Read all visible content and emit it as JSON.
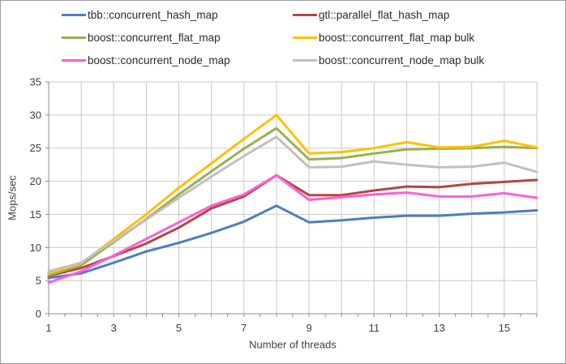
{
  "chart_data": {
    "type": "line",
    "title": "",
    "xlabel": "Number of threads",
    "ylabel": "Mops/sec",
    "x": [
      1,
      2,
      3,
      4,
      5,
      6,
      7,
      8,
      9,
      10,
      11,
      12,
      13,
      14,
      15,
      16
    ],
    "series": [
      {
        "name": "tbb::concurrent_hash_map",
        "color": "#4E7EBE",
        "values": [
          5.4,
          6.1,
          7.7,
          9.4,
          10.7,
          12.2,
          13.9,
          16.3,
          13.8,
          14.1,
          14.5,
          14.8,
          14.8,
          15.1,
          15.3,
          15.6
        ]
      },
      {
        "name": "gtl::parallel_flat_hash_map",
        "color": "#AD4A42",
        "values": [
          5.7,
          6.9,
          8.7,
          10.6,
          13.0,
          15.9,
          17.7,
          20.9,
          17.9,
          17.9,
          18.6,
          19.2,
          19.1,
          19.6,
          19.9,
          20.2
        ]
      },
      {
        "name": "boost::concurrent_flat_map",
        "color": "#97B04F",
        "values": [
          5.8,
          7.3,
          10.8,
          14.3,
          18.0,
          21.5,
          24.9,
          28.0,
          23.3,
          23.5,
          24.2,
          24.8,
          24.9,
          25.0,
          25.2,
          25.0
        ]
      },
      {
        "name": "boost::concurrent_flat_map bulk",
        "color": "#FFC000",
        "values": [
          6.1,
          7.6,
          11.3,
          15.0,
          19.0,
          22.7,
          26.4,
          30.0,
          24.2,
          24.4,
          25.0,
          25.9,
          25.1,
          25.2,
          26.1,
          25.1
        ]
      },
      {
        "name": "boost::concurrent_node_map",
        "color": "#FF5FD7",
        "values": [
          4.7,
          6.4,
          8.8,
          11.3,
          13.8,
          16.3,
          18.0,
          20.9,
          17.2,
          17.6,
          18.0,
          18.3,
          17.7,
          17.7,
          18.2,
          17.5
        ]
      },
      {
        "name": "boost::concurrent_node_map bulk",
        "color": "#C0C0C0",
        "values": [
          6.4,
          7.7,
          11.0,
          14.2,
          17.5,
          20.7,
          23.8,
          26.7,
          22.1,
          22.2,
          23.0,
          22.5,
          22.1,
          22.2,
          22.8,
          21.4
        ]
      }
    ],
    "xlim": [
      1,
      16
    ],
    "ylim": [
      0,
      35
    ],
    "yticks": [
      0,
      5,
      10,
      15,
      20,
      25,
      30,
      35
    ],
    "xtick_labels": [
      1,
      3,
      5,
      7,
      9,
      11,
      13,
      15
    ],
    "grid": true,
    "grid_color": "#C9C9C9",
    "axis_color": "#8C8C8C",
    "text_color": "#3F3F3F",
    "legend_position": "top"
  }
}
